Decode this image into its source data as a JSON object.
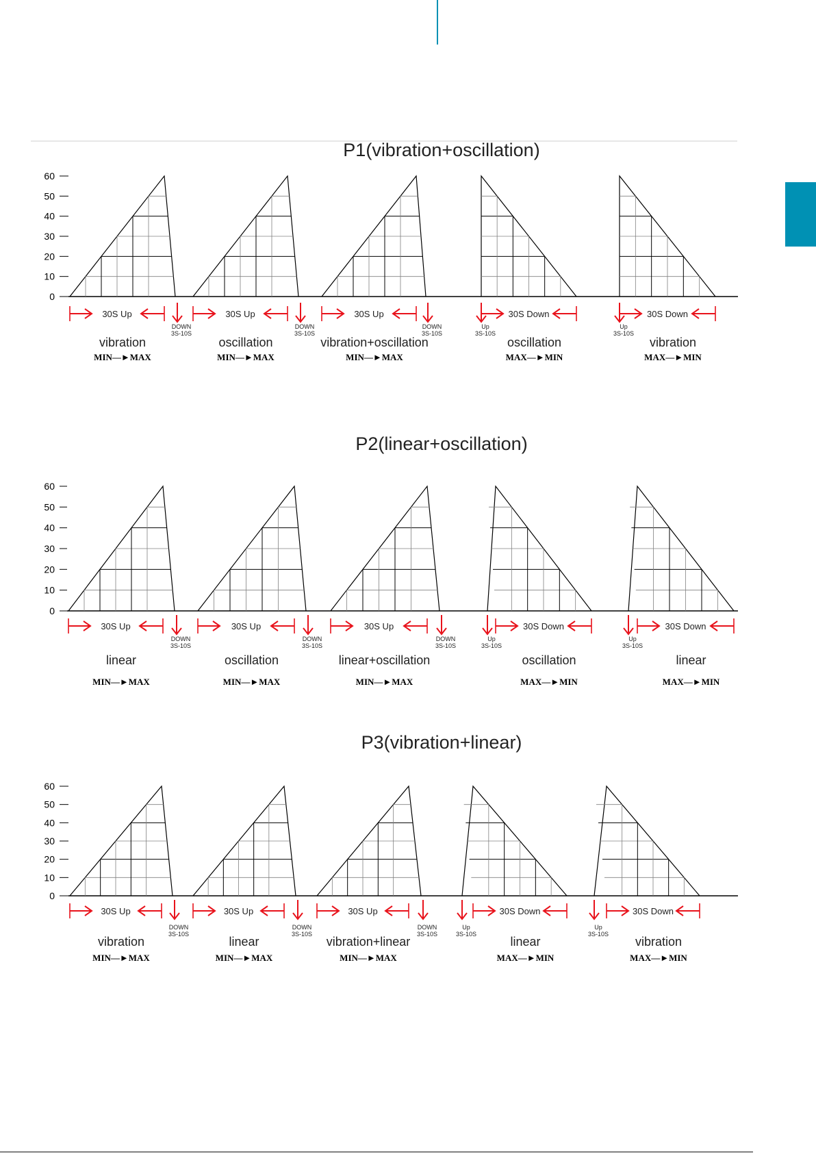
{
  "colors": {
    "accent": "#0091b4",
    "arrow": "#e8121b",
    "line": "#000000"
  },
  "sections": [
    {
      "title": "P1(vibration+oscillation)",
      "y_ticks": [
        "60",
        "50",
        "40",
        "30",
        "20",
        "10",
        "0"
      ],
      "segments": [
        {
          "shape": "up",
          "time": "30S Up",
          "mode": "vibration",
          "range": "MIN—►MAX",
          "mark_label": [
            "DOWN",
            "3S-10S"
          ]
        },
        {
          "shape": "up",
          "time": "30S Up",
          "mode": "oscillation",
          "range": "MIN—►MAX",
          "mark_label": [
            "DOWN",
            "3S-10S"
          ]
        },
        {
          "shape": "up",
          "time": "30S Up",
          "mode": "vibration+oscillation",
          "range": "MIN—►MAX",
          "mark_label": [
            "DOWN",
            "3S-10S"
          ]
        },
        {
          "shape": "down",
          "time": "30S Down",
          "mode": "oscillation",
          "range": "MAX—►MIN",
          "mark_label": [
            "Up",
            "3S-10S"
          ]
        },
        {
          "shape": "down",
          "time": "30S Down",
          "mode": "vibration",
          "range": "MAX—►MIN",
          "mark_label": [
            "Up",
            "3S-10S"
          ]
        }
      ]
    },
    {
      "title": "P2(linear+oscillation)",
      "y_ticks": [
        "60",
        "50",
        "40",
        "30",
        "20",
        "10",
        "0"
      ],
      "segments": [
        {
          "shape": "up",
          "time": "30S Up",
          "mode": "linear",
          "range": "MIN—►MAX",
          "mark_label": [
            "DOWN",
            "3S-10S"
          ]
        },
        {
          "shape": "up",
          "time": "30S Up",
          "mode": "oscillation",
          "range": "MIN—►MAX",
          "mark_label": [
            "DOWN",
            "3S-10S"
          ]
        },
        {
          "shape": "up",
          "time": "30S Up",
          "mode": "linear+oscillation",
          "range": "MIN—►MAX",
          "mark_label": [
            "DOWN",
            "3S-10S"
          ]
        },
        {
          "shape": "down",
          "time": "30S Down",
          "mode": "oscillation",
          "range": "MAX—►MIN",
          "mark_label": [
            "Up",
            "3S-10S"
          ]
        },
        {
          "shape": "down",
          "time": "30S Down",
          "mode": "linear",
          "range": "MAX—►MIN",
          "mark_label": [
            "Up",
            "3S-10S"
          ]
        }
      ]
    },
    {
      "title": "P3(vibration+linear)",
      "y_ticks": [
        "60",
        "50",
        "40",
        "30",
        "20",
        "10",
        "0"
      ],
      "segments": [
        {
          "shape": "up",
          "time": "30S Up",
          "mode": "vibration",
          "range": "MIN—►MAX",
          "mark_label": [
            "DOWN",
            "3S-10S"
          ]
        },
        {
          "shape": "up",
          "time": "30S Up",
          "mode": "linear",
          "range": "MIN—►MAX",
          "mark_label": [
            "DOWN",
            "3S-10S"
          ]
        },
        {
          "shape": "up",
          "time": "30S Up",
          "mode": "vibration+linear",
          "range": "MIN—►MAX",
          "mark_label": [
            "DOWN",
            "3S-10S"
          ]
        },
        {
          "shape": "down",
          "time": "30S Down",
          "mode": "linear",
          "range": "MAX—►MIN",
          "mark_label": [
            "Up",
            "3S-10S"
          ]
        },
        {
          "shape": "down",
          "time": "30S Down",
          "mode": "vibration",
          "range": "MAX—►MIN",
          "mark_label": [
            "Up",
            "3S-10S"
          ]
        }
      ]
    }
  ]
}
